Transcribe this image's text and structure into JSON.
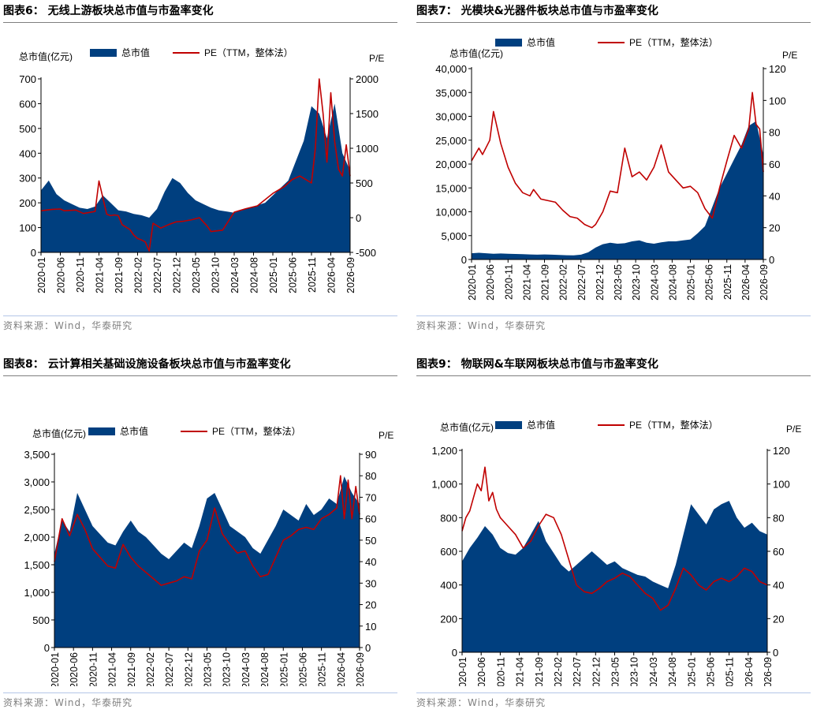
{
  "source_text": "资料来源：Wind，华泰研究",
  "legend_labels": {
    "mcap": "总市值",
    "pe": "PE（TTM，整体法）"
  },
  "colors": {
    "mcap": "#003f7f",
    "pe": "#c00000"
  },
  "panels": [
    {
      "title": "图表6：  无线上游板块总市值与市盈率变化",
      "chart_data": {
        "type": "area",
        "left_axis_label": "总市值(亿元)",
        "right_axis_label": "P/E",
        "x_ticks": [
          "2020-01",
          "2020-06",
          "2020-11",
          "2021-04",
          "2021-09",
          "2022-02",
          "2022-07",
          "2022-12",
          "2023-05",
          "2023-10",
          "2024-03",
          "2024-08",
          "2025-01",
          "2025-06",
          "2025-11",
          "2026-04",
          "2026-09"
        ],
        "left_ylim": [
          0,
          700
        ],
        "left_ticks": [
          0,
          100,
          200,
          300,
          400,
          500,
          600,
          700
        ],
        "left_tick_labels": [
          "0",
          "100",
          "200",
          "300",
          "400",
          "500",
          "600",
          "700"
        ],
        "right_ylim": [
          -500,
          2000
        ],
        "right_ticks": [
          -500,
          0,
          500,
          1000,
          1500,
          2000
        ],
        "right_tick_labels": [
          "-500",
          "0",
          "500",
          "1000",
          "1500",
          "2000"
        ],
        "series": [
          {
            "name": "总市值",
            "axis": "left",
            "type": "area",
            "x": [
              0,
              2,
              4,
              6,
              8,
              10,
              12,
              14,
              16,
              18,
              20,
              22,
              24,
              26,
              28,
              30,
              32,
              34,
              36,
              38,
              40,
              42,
              44,
              46,
              48,
              50,
              52,
              54,
              56,
              58,
              60,
              62,
              64,
              66,
              68,
              70,
              72,
              74,
              76,
              78,
              80
            ],
            "values": [
              250,
              290,
              235,
              210,
              195,
              180,
              175,
              185,
              230,
              200,
              170,
              165,
              155,
              150,
              140,
              175,
              245,
              300,
              280,
              240,
              210,
              195,
              180,
              170,
              165,
              160,
              170,
              180,
              190,
              200,
              230,
              260,
              290,
              370,
              450,
              590,
              560,
              460,
              600,
              400,
              330
            ]
          },
          {
            "name": "PE（TTM，整体法）",
            "axis": "right",
            "type": "line",
            "x": [
              0,
              3,
              5,
              6,
              9,
              11,
              14,
              15,
              17,
              18,
              19,
              20,
              21,
              23,
              24,
              25,
              26,
              27,
              28,
              29,
              31,
              33,
              35,
              37,
              39,
              41,
              43,
              44,
              47,
              50,
              53,
              56,
              58,
              60,
              63,
              65,
              67,
              70,
              71,
              72,
              73,
              74,
              75,
              76,
              77,
              78,
              79,
              80
            ],
            "values": [
              100,
              120,
              125,
              100,
              110,
              60,
              90,
              530,
              50,
              30,
              40,
              30,
              -100,
              -170,
              -250,
              -300,
              -320,
              -350,
              -480,
              -80,
              -150,
              -100,
              -60,
              -50,
              -30,
              0,
              -120,
              -200,
              -180,
              80,
              130,
              170,
              260,
              350,
              450,
              550,
              600,
              500,
              1000,
              2000,
              1500,
              800,
              1800,
              1100,
              700,
              600,
              1050,
              600
            ]
          }
        ]
      }
    },
    {
      "title": "图表7：  光模块&光器件板块总市值与市盈率变化",
      "chart_data": {
        "type": "area",
        "left_axis_label": "总市值(亿元)",
        "right_axis_label": "P/E",
        "x_ticks": [
          "2020-01",
          "2020-06",
          "2020-11",
          "2021-04",
          "2021-09",
          "2022-02",
          "2022-07",
          "2022-12",
          "2023-05",
          "2023-10",
          "2024-03",
          "2024-08",
          "2025-01",
          "2025-06",
          "2025-11",
          "2026-04",
          "2026-09"
        ],
        "left_ylim": [
          0,
          40000
        ],
        "left_ticks": [
          0,
          5000,
          10000,
          15000,
          20000,
          25000,
          30000,
          35000,
          40000
        ],
        "left_tick_labels": [
          "0",
          "5,000",
          "10,000",
          "15,000",
          "20,000",
          "25,000",
          "30,000",
          "35,000",
          "40,000"
        ],
        "right_ylim": [
          0,
          120
        ],
        "right_ticks": [
          0,
          20,
          40,
          60,
          80,
          100,
          120
        ],
        "right_tick_labels": [
          "0",
          "20",
          "40",
          "60",
          "80",
          "100",
          "120"
        ],
        "series": [
          {
            "name": "总市值",
            "axis": "left",
            "type": "area",
            "x": [
              0,
              2,
              4,
              6,
              8,
              10,
              12,
              14,
              16,
              18,
              20,
              22,
              24,
              26,
              28,
              30,
              32,
              34,
              36,
              38,
              40,
              42,
              44,
              46,
              48,
              50,
              52,
              54,
              56,
              58,
              60,
              62,
              64,
              66,
              68,
              70,
              72,
              74,
              76,
              78,
              80
            ],
            "values": [
              1300,
              1400,
              1300,
              1200,
              1250,
              1200,
              1150,
              1100,
              1050,
              1000,
              1050,
              1000,
              950,
              900,
              880,
              1000,
              1500,
              2500,
              3200,
              3500,
              3300,
              3400,
              3800,
              4000,
              3500,
              3300,
              3600,
              3800,
              3800,
              4000,
              4200,
              5500,
              7000,
              11000,
              15000,
              18000,
              21000,
              24000,
              28000,
              29000,
              22000
            ]
          },
          {
            "name": "PE（TTM，整体法）",
            "axis": "right",
            "type": "line",
            "x": [
              0,
              2,
              3,
              5,
              6,
              8,
              10,
              12,
              14,
              16,
              17,
              19,
              21,
              23,
              25,
              27,
              29,
              31,
              33,
              34,
              36,
              38,
              40,
              42,
              44,
              46,
              48,
              50,
              52,
              54,
              56,
              58,
              60,
              62,
              64,
              66,
              68,
              70,
              72,
              74,
              76,
              77,
              78,
              79,
              80
            ],
            "values": [
              62,
              70,
              66,
              75,
              93,
              73,
              58,
              48,
              42,
              40,
              44,
              38,
              37,
              36,
              31,
              27,
              26,
              22,
              20,
              22,
              30,
              43,
              42,
              70,
              52,
              55,
              50,
              58,
              72,
              55,
              50,
              45,
              46,
              42,
              32,
              26,
              45,
              62,
              78,
              70,
              82,
              105,
              85,
              82,
              55
            ]
          }
        ]
      }
    },
    {
      "title": "图表8：  云计算相关基础设施设备板块总市值与市盈率变化",
      "chart_data": {
        "type": "area",
        "left_axis_label": "总市值(亿元)",
        "right_axis_label": "P/E",
        "x_ticks": [
          "2020-01",
          "2020-06",
          "2020-11",
          "2021-04",
          "2021-09",
          "2022-02",
          "2022-07",
          "2022-12",
          "2023-05",
          "2023-10",
          "2024-03",
          "2024-08",
          "2025-01",
          "2025-06",
          "2025-11",
          "2026-04",
          "2026-09"
        ],
        "left_ylim": [
          0,
          3500
        ],
        "left_ticks": [
          0,
          500,
          1000,
          1500,
          2000,
          2500,
          3000,
          3500
        ],
        "left_tick_labels": [
          "0",
          "500",
          "1,000",
          "1,500",
          "2,000",
          "2,500",
          "3,000",
          "3,500"
        ],
        "right_ylim": [
          0,
          90
        ],
        "right_ticks": [
          0,
          10,
          20,
          30,
          40,
          50,
          60,
          70,
          80,
          90
        ],
        "right_tick_labels": [
          "0",
          "10",
          "20",
          "30",
          "40",
          "50",
          "60",
          "70",
          "80",
          "90"
        ],
        "series": [
          {
            "name": "总市值",
            "axis": "left",
            "type": "area",
            "x": [
              0,
              2,
              4,
              6,
              8,
              10,
              12,
              14,
              16,
              18,
              20,
              22,
              24,
              26,
              28,
              30,
              32,
              34,
              36,
              38,
              40,
              42,
              44,
              46,
              48,
              50,
              52,
              54,
              56,
              58,
              60,
              62,
              64,
              66,
              68,
              70,
              72,
              74,
              76,
              78,
              80
            ],
            "values": [
              1700,
              2300,
              2100,
              2800,
              2500,
              2200,
              2050,
              1900,
              1850,
              2100,
              2300,
              2100,
              2000,
              1850,
              1700,
              1600,
              1750,
              1900,
              1800,
              2200,
              2700,
              2800,
              2500,
              2200,
              2100,
              2000,
              1800,
              1700,
              1950,
              2200,
              2500,
              2400,
              2300,
              2600,
              2400,
              2500,
              2700,
              2600,
              3100,
              2800,
              2600
            ]
          },
          {
            "name": "PE（TTM，整体法）",
            "axis": "right",
            "type": "line",
            "x": [
              0,
              2,
              4,
              6,
              8,
              10,
              12,
              14,
              16,
              18,
              20,
              22,
              24,
              26,
              28,
              30,
              32,
              34,
              36,
              38,
              40,
              42,
              44,
              46,
              48,
              50,
              52,
              54,
              56,
              58,
              60,
              62,
              64,
              66,
              68,
              70,
              72,
              74,
              75,
              76,
              77,
              78,
              79,
              80
            ],
            "values": [
              40,
              60,
              52,
              62,
              55,
              46,
              42,
              38,
              37,
              48,
              42,
              38,
              35,
              32,
              29,
              30,
              31,
              33,
              32,
              45,
              50,
              65,
              53,
              48,
              44,
              45,
              38,
              33,
              34,
              42,
              50,
              52,
              55,
              56,
              55,
              60,
              62,
              65,
              80,
              60,
              78,
              60,
              75,
              62
            ]
          }
        ]
      }
    },
    {
      "title": "图表9：  物联网&车联网板块总市值与市盈率变化",
      "chart_data": {
        "type": "area",
        "left_axis_label": "总市值(亿元)",
        "right_axis_label": "P/E",
        "x_ticks": [
          "2020-01",
          "2020-06",
          "2020-11",
          "2021-04",
          "2021-09",
          "2022-02",
          "2022-07",
          "2022-12",
          "2023-05",
          "2023-10",
          "2024-03",
          "2024-08",
          "2025-01",
          "2025-06",
          "2025-11",
          "2026-04",
          "2026-09"
        ],
        "left_ylim": [
          0,
          1200
        ],
        "left_ticks": [
          0,
          200,
          400,
          600,
          800,
          1000,
          1200
        ],
        "left_tick_labels": [
          "0",
          "200",
          "400",
          "600",
          "800",
          "1,000",
          "1,200"
        ],
        "right_ylim": [
          0,
          120
        ],
        "right_ticks": [
          0,
          20,
          40,
          60,
          80,
          100,
          120
        ],
        "right_tick_labels": [
          "0",
          "20",
          "40",
          "60",
          "80",
          "100",
          "120"
        ],
        "series": [
          {
            "name": "总市值",
            "axis": "left",
            "type": "area",
            "x": [
              0,
              2,
              4,
              6,
              8,
              10,
              12,
              14,
              16,
              18,
              20,
              22,
              24,
              26,
              28,
              30,
              32,
              34,
              36,
              38,
              40,
              42,
              44,
              46,
              48,
              50,
              52,
              54,
              56,
              58,
              60,
              62,
              64,
              66,
              68,
              70,
              72,
              74,
              76,
              78,
              80
            ],
            "values": [
              540,
              620,
              680,
              750,
              700,
              620,
              590,
              580,
              620,
              700,
              780,
              660,
              590,
              520,
              480,
              520,
              560,
              600,
              560,
              520,
              540,
              500,
              480,
              460,
              450,
              420,
              400,
              380,
              520,
              700,
              880,
              820,
              760,
              850,
              880,
              900,
              800,
              740,
              770,
              720,
              700
            ]
          },
          {
            "name": "PE（TTM，整体法）",
            "axis": "right",
            "type": "line",
            "x": [
              0,
              1,
              2,
              3,
              4,
              5,
              6,
              7,
              8,
              9,
              10,
              12,
              14,
              16,
              18,
              20,
              22,
              24,
              26,
              28,
              30,
              32,
              34,
              36,
              38,
              40,
              42,
              44,
              46,
              48,
              50,
              52,
              54,
              56,
              58,
              60,
              62,
              64,
              66,
              68,
              70,
              72,
              74,
              76,
              78,
              80
            ],
            "values": [
              72,
              80,
              84,
              92,
              100,
              96,
              110,
              90,
              95,
              85,
              80,
              75,
              70,
              62,
              66,
              75,
              82,
              80,
              70,
              55,
              40,
              36,
              35,
              38,
              42,
              44,
              47,
              45,
              40,
              35,
              32,
              25,
              28,
              38,
              50,
              46,
              40,
              37,
              42,
              44,
              42,
              45,
              50,
              48,
              42,
              40
            ]
          }
        ]
      }
    }
  ]
}
